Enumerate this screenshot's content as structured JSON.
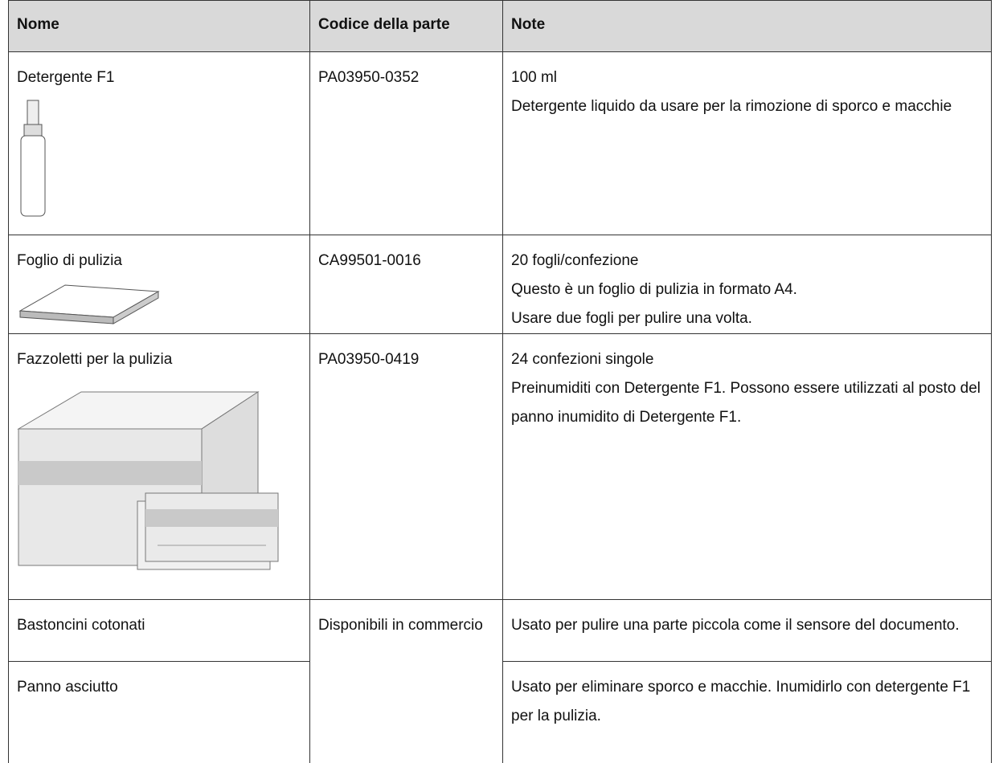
{
  "table": {
    "header": [
      "Nome",
      "Codice della parte",
      "Note"
    ],
    "rows": [
      {
        "name": "Detergente F1",
        "code": "PA03950-0352",
        "notes": [
          "100 ml",
          "Detergente liquido da usare per la rimozione di sporco e macchie"
        ]
      },
      {
        "name": "Foglio di pulizia",
        "code": "CA99501-0016",
        "notes": [
          "20 fogli/confezione",
          "Questo è un foglio di pulizia in formato A4.",
          "Usare due fogli per pulire una volta."
        ]
      },
      {
        "name": "Fazzoletti per la pulizia",
        "code": "PA03950-0419",
        "notes": [
          "24 confezioni singole",
          "Preinumiditi con Detergente F1. Possono essere utilizzati al posto del panno inumidito di Detergente F1."
        ]
      },
      {
        "name": "Bastoncini cotonati",
        "code": "Disponibili in commercio",
        "notes": [
          "Usato per pulire una parte piccola come il sensore del documento."
        ]
      },
      {
        "name": "Panno asciutto",
        "notes": [
          "Usato per eliminare sporco e macchie. Inumidirlo con detergente F1 per la pulizia."
        ]
      }
    ]
  }
}
